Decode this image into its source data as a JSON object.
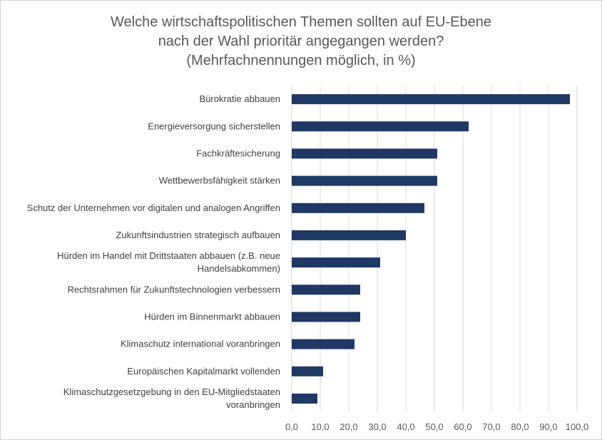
{
  "chart_data": {
    "type": "bar",
    "orientation": "horizontal",
    "title": "Welche wirtschaftspolitischen Themen sollten auf EU-Ebene nach der Wahl prioritär angegangen werden? (Mehrfachnennungen möglich, in %)",
    "title_lines": [
      "Welche wirtschaftspolitischen Themen sollten auf EU-Ebene",
      "nach der Wahl prioritär angegangen werden?",
      "(Mehrfachnennungen möglich, in %)"
    ],
    "categories": [
      [
        "Bürokratie abbauen"
      ],
      [
        "Energieversorgung sicherstellen"
      ],
      [
        "Fachkräftesicherung"
      ],
      [
        "Wettbewerbsfähigkeit stärken"
      ],
      [
        "Schutz der Unternehmen vor digitalen und analogen Angriffen"
      ],
      [
        "Zukunftsindustrien strategisch aufbauen"
      ],
      [
        "Hürden im Handel mit Drittstaaten abbauen (z.B. neue",
        "Handelsabkommen)"
      ],
      [
        "Rechtsrahmen für Zukunftstechnologien verbessern"
      ],
      [
        "Hürden im Binnenmarkt abbauen"
      ],
      [
        "Klimaschutz international voranbringen"
      ],
      [
        "Europäischen Kapitalmarkt vollenden"
      ],
      [
        "Klimaschutzgesetzgebung in den EU-Mitgliedstaaten",
        "voranbringen"
      ]
    ],
    "values": [
      97.5,
      62,
      51,
      51,
      46.5,
      40,
      31,
      24,
      24,
      22,
      11,
      9
    ],
    "xlim": [
      0,
      100
    ],
    "xticks": [
      "0,0",
      "10,0",
      "20,0",
      "30,0",
      "40,0",
      "50,0",
      "60,0",
      "70,0",
      "80,0",
      "90,0",
      "100,0"
    ],
    "xlabel": "",
    "ylabel": "",
    "grid": true,
    "legend": "none",
    "bar_color": "#1f3864",
    "grid_color": "#d9d9d9"
  }
}
